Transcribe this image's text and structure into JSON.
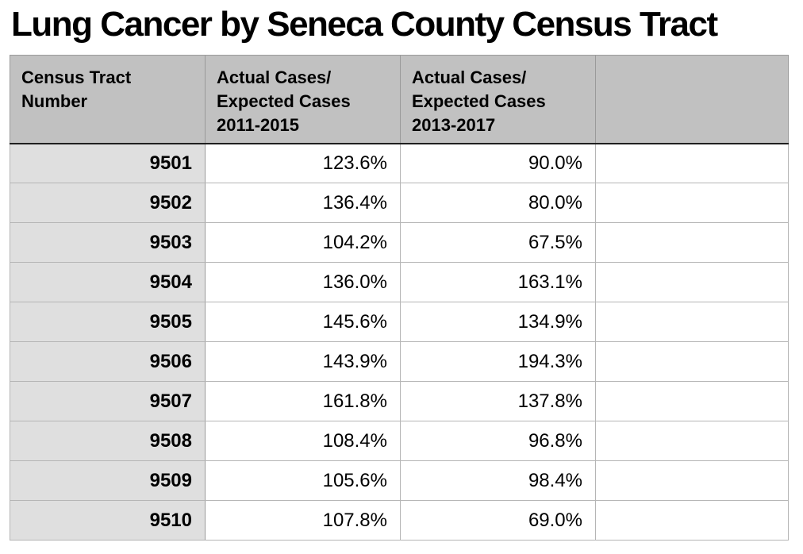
{
  "page": {
    "title": "Lung Cancer by Seneca County Census Tract"
  },
  "table": {
    "columns": [
      {
        "label": "Census Tract\nNumber"
      },
      {
        "label": "Actual Cases/\nExpected Cases\n2011-2015"
      },
      {
        "label": "Actual Cases/\nExpected Cases\n2013-2017"
      },
      {
        "label": ""
      }
    ],
    "rows": [
      {
        "tract": "9501",
        "cases_2011_2015": "123.6%",
        "cases_2013_2017": "90.0%",
        "extra": ""
      },
      {
        "tract": "9502",
        "cases_2011_2015": "136.4%",
        "cases_2013_2017": "80.0%",
        "extra": ""
      },
      {
        "tract": "9503",
        "cases_2011_2015": "104.2%",
        "cases_2013_2017": "67.5%",
        "extra": ""
      },
      {
        "tract": "9504",
        "cases_2011_2015": "136.0%",
        "cases_2013_2017": "163.1%",
        "extra": ""
      },
      {
        "tract": "9505",
        "cases_2011_2015": "145.6%",
        "cases_2013_2017": "134.9%",
        "extra": ""
      },
      {
        "tract": "9506",
        "cases_2011_2015": "143.9%",
        "cases_2013_2017": "194.3%",
        "extra": ""
      },
      {
        "tract": "9507",
        "cases_2011_2015": "161.8%",
        "cases_2013_2017": "137.8%",
        "extra": ""
      },
      {
        "tract": "9508",
        "cases_2011_2015": "108.4%",
        "cases_2013_2017": "96.8%",
        "extra": ""
      },
      {
        "tract": "9509",
        "cases_2011_2015": "105.6%",
        "cases_2013_2017": "98.4%",
        "extra": ""
      },
      {
        "tract": "9510",
        "cases_2011_2015": "107.8%",
        "cases_2013_2017": "69.0%",
        "extra": ""
      }
    ]
  },
  "chart_data": {
    "type": "table",
    "title": "Lung Cancer by Seneca County Census Tract",
    "categories": [
      "9501",
      "9502",
      "9503",
      "9504",
      "9505",
      "9506",
      "9507",
      "9508",
      "9509",
      "9510"
    ],
    "series": [
      {
        "name": "Actual Cases/Expected Cases 2011-2015 (%)",
        "values": [
          123.6,
          136.4,
          104.2,
          136.0,
          145.6,
          143.9,
          161.8,
          108.4,
          105.6,
          107.8
        ]
      },
      {
        "name": "Actual Cases/Expected Cases 2013-2017 (%)",
        "values": [
          90.0,
          80.0,
          67.5,
          163.1,
          134.9,
          194.3,
          137.8,
          96.8,
          98.4,
          69.0
        ]
      }
    ]
  },
  "colors": {
    "header-bg": "#c1c1c1",
    "rowlabel-bg": "#dfdfdf",
    "grid-light": "#b5b5b5",
    "grid-mid": "#9a9a9a",
    "grid-dark": "#1f1f1f",
    "text": "#000000",
    "page-bg": "#ffffff"
  }
}
